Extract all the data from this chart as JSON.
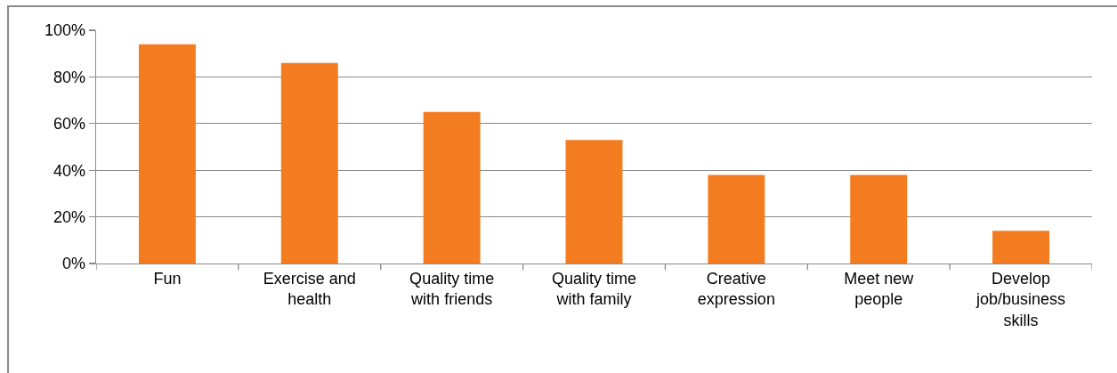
{
  "chart_data": {
    "type": "bar",
    "categories": [
      "Fun",
      "Exercise and health",
      "Quality time with friends",
      "Quality time with family",
      "Creative expression",
      "Meet new people",
      "Develop job/business skills"
    ],
    "values": [
      94,
      86,
      65,
      53,
      38,
      38,
      14
    ],
    "color": "#f37c21",
    "ylim": [
      0,
      100
    ],
    "yticks": [
      {
        "value": 0,
        "label": "0%"
      },
      {
        "value": 20,
        "label": "20%"
      },
      {
        "value": 40,
        "label": "40%"
      },
      {
        "value": 60,
        "label": "60%"
      },
      {
        "value": 80,
        "label": "80%"
      },
      {
        "value": 100,
        "label": "100%"
      }
    ],
    "grid": "y"
  }
}
